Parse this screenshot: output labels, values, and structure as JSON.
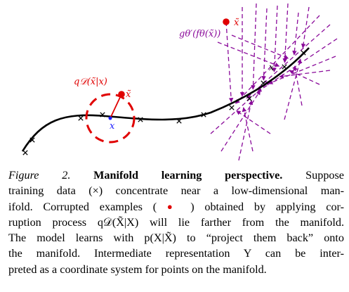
{
  "figure": {
    "label_q": "q𝒟(x̃|x)",
    "label_g": "gθ′(fθ(x̃))",
    "label_x_tilde_upper": "x̃",
    "label_x_tilde_lower": "x̃",
    "label_x_lower": "x",
    "label_x_upper": "x",
    "colors": {
      "manifold": "#000000",
      "corrupted": "#e00000",
      "circle": "#e00000",
      "arrows": "#8a0a9a",
      "clean_point": "#1a1aff"
    }
  },
  "caption": {
    "lines": [
      {
        "parts": [
          {
            "style": "fig-label",
            "text": "Figure 2. "
          },
          {
            "style": "fig-title",
            "text": "Manifold learning perspective."
          },
          {
            "style": "normal",
            "text": " Suppose"
          }
        ]
      },
      {
        "parts": [
          {
            "style": "normal",
            "text": "training data (×) concentrate near a low-dimensional man-"
          }
        ]
      },
      {
        "parts": [
          {
            "style": "normal",
            "text": "ifold. Corrupted examples ( "
          },
          {
            "style": "red-dot",
            "text": "●"
          },
          {
            "style": "normal",
            "text": " ) obtained by applying cor-"
          }
        ]
      },
      {
        "parts": [
          {
            "style": "normal",
            "text": "ruption process q𝒟(X̃|X) will lie farther from the manifold."
          }
        ]
      },
      {
        "parts": [
          {
            "style": "normal",
            "text": "The model learns with p(X|X̃) to “project them back” onto"
          }
        ]
      },
      {
        "parts": [
          {
            "style": "normal",
            "text": "the manifold. Intermediate representation Y can be inter-"
          }
        ]
      },
      {
        "parts": [
          {
            "style": "normal",
            "text": "preted as a coordinate system for points on the manifold."
          }
        ]
      }
    ]
  }
}
